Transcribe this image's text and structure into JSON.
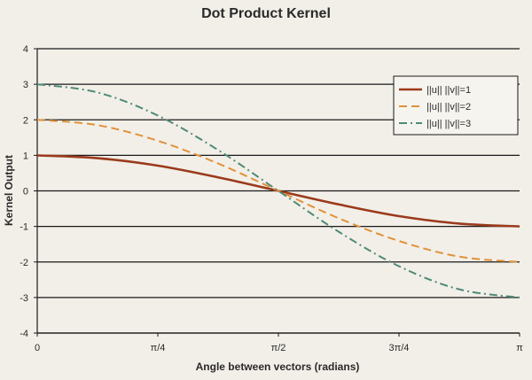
{
  "chart_data": {
    "type": "line",
    "title": "Dot Product Kernel",
    "xlabel": "Angle between vectors (radians)",
    "ylabel": "Kernel Output",
    "xlim": [
      0,
      3.14159
    ],
    "ylim": [
      -4,
      4
    ],
    "grid": "horizontal",
    "legend_position": "top-right",
    "x_ticks": [
      {
        "value": 0,
        "label": "0"
      },
      {
        "value": 0.7854,
        "label": "π/4"
      },
      {
        "value": 1.5708,
        "label": "π/2"
      },
      {
        "value": 2.3562,
        "label": "3π/4"
      },
      {
        "value": 3.14159,
        "label": "π"
      }
    ],
    "y_ticks": [
      {
        "value": 4,
        "label": "4"
      },
      {
        "value": 3,
        "label": "3"
      },
      {
        "value": 2,
        "label": "2"
      },
      {
        "value": 1,
        "label": "1"
      },
      {
        "value": 0,
        "label": "0"
      },
      {
        "value": -1,
        "label": "-1"
      },
      {
        "value": -2,
        "label": "-2"
      },
      {
        "value": -3,
        "label": "-3"
      },
      {
        "value": -4,
        "label": "-4"
      }
    ],
    "x": [
      0,
      0.3927,
      0.7854,
      1.1781,
      1.5708,
      1.9635,
      2.3562,
      2.7489,
      3.14159
    ],
    "series": [
      {
        "name": "||u|| ||v||=1",
        "color": "#9b3a1c",
        "dash": "solid",
        "values": [
          1,
          0.92,
          0.71,
          0.38,
          0,
          -0.38,
          -0.71,
          -0.92,
          -1
        ]
      },
      {
        "name": "||u|| ||v||=2",
        "color": "#e0923a",
        "dash": "dashed",
        "values": [
          2,
          1.85,
          1.41,
          0.77,
          0,
          -0.77,
          -1.41,
          -1.85,
          -2
        ]
      },
      {
        "name": "||u|| ||v||=3",
        "color": "#4f8a78",
        "dash": "dashdot",
        "values": [
          3,
          2.77,
          2.12,
          1.15,
          0,
          -1.15,
          -2.12,
          -2.77,
          -3
        ]
      }
    ]
  }
}
